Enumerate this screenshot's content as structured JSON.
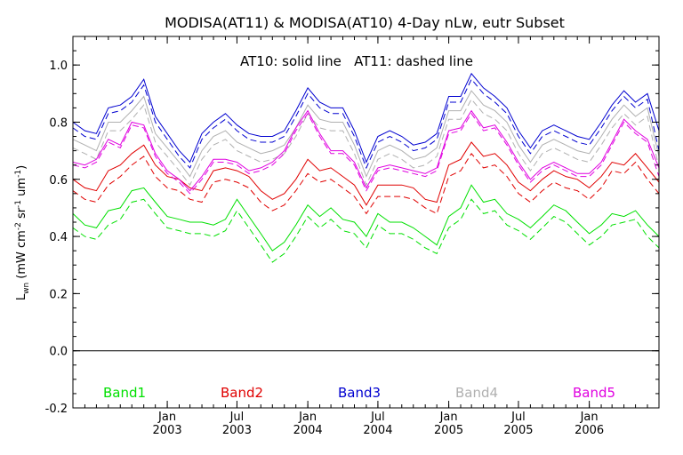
{
  "chart_data": {
    "type": "line",
    "title": "MODISA(AT11) & MODISA(AT10) 4-Day nLw, eutr Subset",
    "annotation": "AT10: solid line   AT11: dashed line",
    "ylabel_parts": {
      "L": "L",
      "wn": "wn",
      "open": " (mW cm",
      "e1": "-2",
      "sr": " sr",
      "e2": "-1",
      "um": " um",
      "e3": "-1",
      "close": ")"
    },
    "ylim": [
      -0.2,
      1.1
    ],
    "yticks": [
      -0.2,
      0.0,
      0.2,
      0.4,
      0.6,
      0.8,
      1.0
    ],
    "ytick_labels": [
      "-0.2",
      "0.0",
      "0.2",
      "0.4",
      "0.6",
      "0.8",
      "1.0"
    ],
    "xlim": [
      "2002-05-01",
      "2006-07-01"
    ],
    "xticks": [
      {
        "date": "2003-01-01",
        "month": "Jan",
        "year": "2003"
      },
      {
        "date": "2003-07-01",
        "month": "Jul",
        "year": "2003"
      },
      {
        "date": "2004-01-01",
        "month": "Jan",
        "year": "2004"
      },
      {
        "date": "2004-07-01",
        "month": "Jul",
        "year": "2004"
      },
      {
        "date": "2005-01-01",
        "month": "Jan",
        "year": "2005"
      },
      {
        "date": "2005-07-01",
        "month": "Jul",
        "year": "2005"
      },
      {
        "date": "2006-01-01",
        "month": "Jan",
        "year": "2006"
      }
    ],
    "zero_line": 0.0,
    "grid": false,
    "legend_placement": "bottom",
    "dates": [
      "2002-05-01",
      "2002-06-01",
      "2002-07-01",
      "2002-08-01",
      "2002-09-01",
      "2002-10-01",
      "2002-11-01",
      "2002-12-01",
      "2003-01-01",
      "2003-02-01",
      "2003-03-01",
      "2003-04-01",
      "2003-05-01",
      "2003-06-01",
      "2003-07-01",
      "2003-08-01",
      "2003-09-01",
      "2003-10-01",
      "2003-11-01",
      "2003-12-01",
      "2004-01-01",
      "2004-02-01",
      "2004-03-01",
      "2004-04-01",
      "2004-05-01",
      "2004-06-01",
      "2004-07-01",
      "2004-08-01",
      "2004-09-01",
      "2004-10-01",
      "2004-11-01",
      "2004-12-01",
      "2005-01-01",
      "2005-02-01",
      "2005-03-01",
      "2005-04-01",
      "2005-05-01",
      "2005-06-01",
      "2005-07-01",
      "2005-08-01",
      "2005-09-01",
      "2005-10-01",
      "2005-11-01",
      "2005-12-01",
      "2006-01-01",
      "2006-02-01",
      "2006-03-01",
      "2006-04-01",
      "2006-05-01",
      "2006-06-01",
      "2006-07-01"
    ],
    "series": [
      {
        "name": "Band1",
        "color": "#00e000",
        "at10": [
          0.48,
          0.44,
          0.43,
          0.49,
          0.5,
          0.56,
          0.57,
          0.52,
          0.47,
          0.46,
          0.45,
          0.45,
          0.44,
          0.46,
          0.53,
          0.47,
          0.41,
          0.35,
          0.38,
          0.44,
          0.51,
          0.47,
          0.5,
          0.46,
          0.45,
          0.4,
          0.48,
          0.45,
          0.45,
          0.43,
          0.4,
          0.37,
          0.47,
          0.5,
          0.58,
          0.52,
          0.53,
          0.48,
          0.46,
          0.43,
          0.47,
          0.51,
          0.49,
          0.45,
          0.41,
          0.44,
          0.48,
          0.47,
          0.49,
          0.44,
          0.4
        ],
        "at11": [
          0.43,
          0.4,
          0.39,
          0.44,
          0.46,
          0.52,
          0.53,
          0.48,
          0.43,
          0.42,
          0.41,
          0.41,
          0.4,
          0.42,
          0.49,
          0.43,
          0.37,
          0.31,
          0.34,
          0.4,
          0.47,
          0.43,
          0.46,
          0.42,
          0.41,
          0.36,
          0.44,
          0.41,
          0.41,
          0.39,
          0.36,
          0.34,
          0.43,
          0.46,
          0.53,
          0.48,
          0.49,
          0.44,
          0.42,
          0.39,
          0.43,
          0.47,
          0.45,
          0.41,
          0.37,
          0.4,
          0.44,
          0.45,
          0.46,
          0.4,
          0.36
        ]
      },
      {
        "name": "Band2",
        "color": "#e00000",
        "at10": [
          0.6,
          0.57,
          0.56,
          0.63,
          0.65,
          0.69,
          0.72,
          0.65,
          0.61,
          0.6,
          0.57,
          0.56,
          0.63,
          0.64,
          0.63,
          0.61,
          0.56,
          0.53,
          0.55,
          0.6,
          0.67,
          0.63,
          0.64,
          0.61,
          0.58,
          0.51,
          0.58,
          0.58,
          0.58,
          0.57,
          0.53,
          0.52,
          0.65,
          0.67,
          0.73,
          0.68,
          0.69,
          0.65,
          0.59,
          0.56,
          0.6,
          0.63,
          0.61,
          0.6,
          0.57,
          0.61,
          0.66,
          0.65,
          0.69,
          0.64,
          0.59
        ],
        "at11": [
          0.56,
          0.53,
          0.52,
          0.58,
          0.61,
          0.65,
          0.68,
          0.61,
          0.57,
          0.56,
          0.53,
          0.52,
          0.59,
          0.6,
          0.59,
          0.57,
          0.52,
          0.49,
          0.51,
          0.56,
          0.62,
          0.59,
          0.6,
          0.57,
          0.54,
          0.48,
          0.54,
          0.54,
          0.54,
          0.53,
          0.5,
          0.48,
          0.61,
          0.63,
          0.69,
          0.64,
          0.65,
          0.61,
          0.55,
          0.52,
          0.56,
          0.59,
          0.57,
          0.56,
          0.53,
          0.57,
          0.63,
          0.62,
          0.66,
          0.6,
          0.55
        ]
      },
      {
        "name": "Band3",
        "color": "#0000d0",
        "at10": [
          0.8,
          0.77,
          0.76,
          0.85,
          0.86,
          0.89,
          0.95,
          0.82,
          0.76,
          0.7,
          0.66,
          0.76,
          0.8,
          0.83,
          0.79,
          0.76,
          0.75,
          0.75,
          0.77,
          0.84,
          0.92,
          0.87,
          0.85,
          0.85,
          0.77,
          0.66,
          0.75,
          0.77,
          0.75,
          0.72,
          0.73,
          0.76,
          0.89,
          0.89,
          0.97,
          0.92,
          0.89,
          0.85,
          0.77,
          0.71,
          0.77,
          0.79,
          0.77,
          0.75,
          0.74,
          0.8,
          0.86,
          0.91,
          0.87,
          0.9,
          0.77
        ],
        "at11": [
          0.78,
          0.75,
          0.74,
          0.83,
          0.84,
          0.87,
          0.93,
          0.8,
          0.74,
          0.68,
          0.64,
          0.74,
          0.78,
          0.81,
          0.77,
          0.74,
          0.73,
          0.73,
          0.75,
          0.82,
          0.9,
          0.85,
          0.83,
          0.83,
          0.75,
          0.64,
          0.73,
          0.75,
          0.73,
          0.7,
          0.71,
          0.74,
          0.87,
          0.87,
          0.95,
          0.9,
          0.87,
          0.83,
          0.75,
          0.69,
          0.75,
          0.77,
          0.75,
          0.73,
          0.72,
          0.78,
          0.84,
          0.89,
          0.85,
          0.88,
          0.7
        ]
      },
      {
        "name": "Band4",
        "color": "#b0b0b0",
        "at10": [
          0.74,
          0.72,
          0.7,
          0.8,
          0.8,
          0.84,
          0.89,
          0.76,
          0.71,
          0.66,
          0.61,
          0.7,
          0.75,
          0.77,
          0.73,
          0.71,
          0.69,
          0.7,
          0.72,
          0.78,
          0.86,
          0.81,
          0.8,
          0.8,
          0.72,
          0.61,
          0.7,
          0.72,
          0.7,
          0.67,
          0.68,
          0.71,
          0.84,
          0.84,
          0.91,
          0.86,
          0.84,
          0.8,
          0.72,
          0.66,
          0.72,
          0.74,
          0.72,
          0.7,
          0.69,
          0.75,
          0.81,
          0.86,
          0.82,
          0.85,
          0.68
        ],
        "at11": [
          0.71,
          0.69,
          0.67,
          0.77,
          0.77,
          0.81,
          0.86,
          0.73,
          0.68,
          0.63,
          0.58,
          0.67,
          0.72,
          0.74,
          0.7,
          0.68,
          0.66,
          0.67,
          0.69,
          0.75,
          0.83,
          0.78,
          0.77,
          0.77,
          0.69,
          0.58,
          0.67,
          0.69,
          0.67,
          0.64,
          0.65,
          0.68,
          0.81,
          0.81,
          0.88,
          0.83,
          0.81,
          0.77,
          0.69,
          0.63,
          0.69,
          0.71,
          0.69,
          0.67,
          0.66,
          0.72,
          0.78,
          0.83,
          0.79,
          0.82,
          0.64
        ]
      },
      {
        "name": "Band5",
        "color": "#e000e0",
        "at10": [
          0.66,
          0.65,
          0.67,
          0.74,
          0.72,
          0.8,
          0.79,
          0.69,
          0.63,
          0.6,
          0.56,
          0.61,
          0.67,
          0.67,
          0.66,
          0.63,
          0.64,
          0.66,
          0.7,
          0.78,
          0.84,
          0.76,
          0.7,
          0.7,
          0.66,
          0.57,
          0.64,
          0.65,
          0.64,
          0.63,
          0.62,
          0.64,
          0.77,
          0.78,
          0.84,
          0.78,
          0.79,
          0.73,
          0.66,
          0.6,
          0.64,
          0.66,
          0.64,
          0.62,
          0.62,
          0.66,
          0.73,
          0.81,
          0.77,
          0.74,
          0.64
        ],
        "at11": [
          0.65,
          0.64,
          0.66,
          0.73,
          0.71,
          0.79,
          0.78,
          0.68,
          0.62,
          0.59,
          0.55,
          0.6,
          0.66,
          0.66,
          0.65,
          0.62,
          0.63,
          0.65,
          0.69,
          0.77,
          0.83,
          0.75,
          0.69,
          0.69,
          0.65,
          0.56,
          0.63,
          0.64,
          0.63,
          0.62,
          0.61,
          0.63,
          0.76,
          0.77,
          0.83,
          0.77,
          0.78,
          0.72,
          0.65,
          0.59,
          0.63,
          0.65,
          0.63,
          0.61,
          0.61,
          0.65,
          0.72,
          0.8,
          0.76,
          0.73,
          0.61
        ]
      }
    ]
  }
}
